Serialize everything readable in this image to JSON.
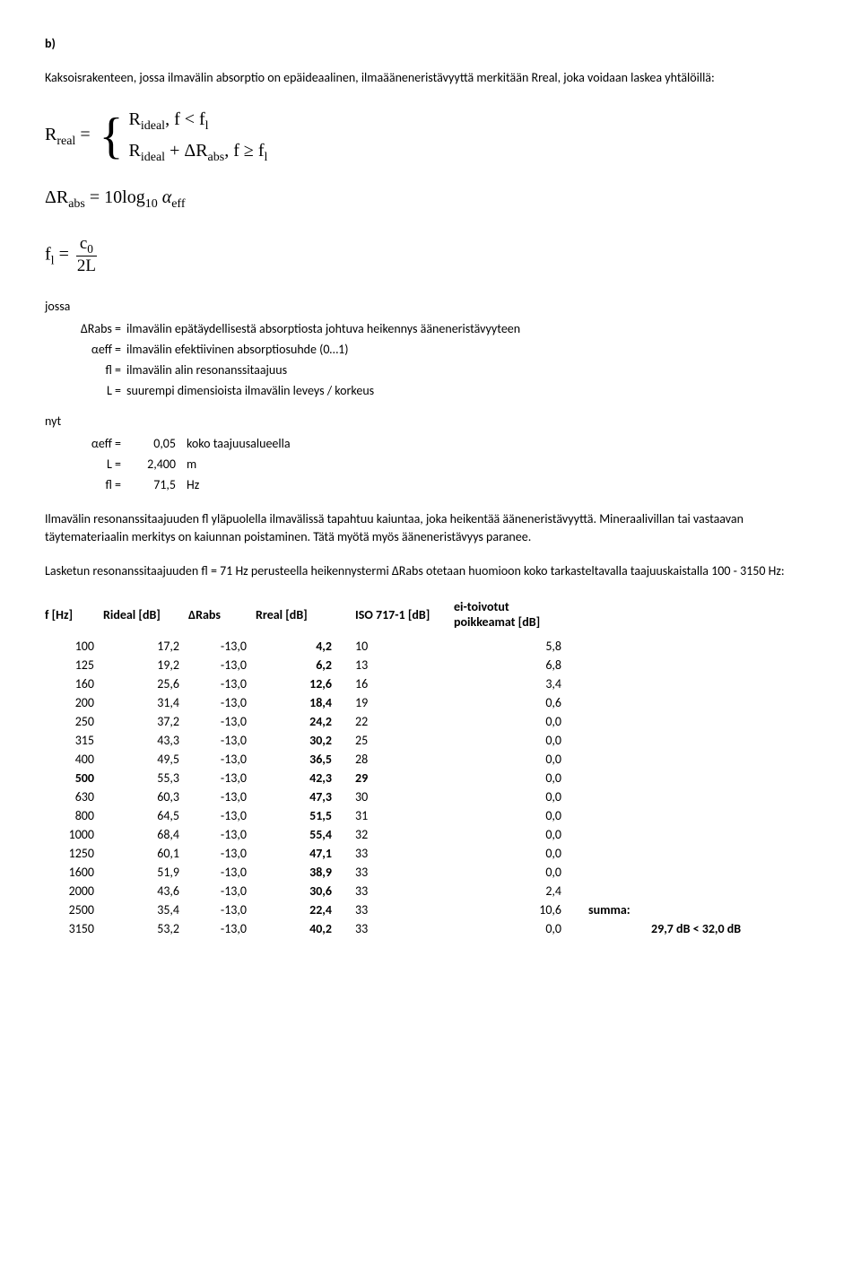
{
  "section_label": "b)",
  "intro": "Kaksoisrakenteen, jossa ilmavälin absorptio on epäideaalinen, ilmaääneneristävyyttä merkitään Rreal, joka voidaan laskea yhtälöillä:",
  "eq1": {
    "lhs": "R",
    "lhs_sub": "real",
    "case1_a": "R",
    "case1_a_sub": "ideal",
    "case1_cond": ", f < f",
    "case1_cond_l": "l",
    "case2_a": "R",
    "case2_a_sub": "ideal",
    "case2_plus": " + ΔR",
    "case2_plus_sub": "abs",
    "case2_cond": ", f ≥ f",
    "case2_cond_l": "l"
  },
  "eq2": {
    "lhs": "ΔR",
    "lhs_sub": "abs",
    "mid": " = 10log",
    "mid_sub": "10",
    "rhs": " α",
    "rhs_sub": "eff"
  },
  "eq3": {
    "lhs": "f",
    "lhs_sub": "l",
    "eq": " = ",
    "num": "c",
    "num_sub": "0",
    "den": "2L"
  },
  "defs_title": "jossa",
  "defs": [
    {
      "sym": "ΔRabs =",
      "desc": "ilmavälin epätäydellisestä absorptiosta johtuva heikennys ääneneristävyyteen"
    },
    {
      "sym": "αeff =",
      "desc": "ilmavälin efektiivinen absorptiosuhde (0…1)"
    },
    {
      "sym": "fl =",
      "desc": "ilmavälin alin resonanssitaajuus"
    },
    {
      "sym": "L =",
      "desc": "suurempi dimensioista ilmavälin leveys / korkeus"
    }
  ],
  "nyt_title": "nyt",
  "nyt": [
    {
      "sym": "αeff =",
      "val": "0,05",
      "unit": "koko taajuusalueella"
    },
    {
      "sym": "L =",
      "val": "2,400",
      "unit": "m"
    },
    {
      "sym": "fl =",
      "val": "71,5",
      "unit": "Hz"
    }
  ],
  "para1": "Ilmavälin resonanssitaajuuden fl yläpuolella ilmavälissä tapahtuu kaiuntaa, joka heikentää ääneneristävyyttä. Mineraalivillan tai vastaavan täytemateriaalin merkitys on kaiunnan poistaminen. Tätä myötä myös ääneneristävyys paranee.",
  "para2": "Lasketun resonanssitaajuuden fl = 71 Hz perusteella heikennystermi ΔRabs otetaan huomioon koko tarkasteltavalla taajuuskaistalla 100 - 3150 Hz:",
  "table": {
    "headers": [
      "f [Hz]",
      "Rideal [dB]",
      "ΔRabs",
      "Rreal [dB]",
      "ISO 717-1 [dB]",
      "ei-toivotut poikkeamat [dB]"
    ],
    "rows": [
      {
        "f": "100",
        "rideal": "17,2",
        "drabs": "-13,0",
        "rreal": "4,2",
        "iso": "10",
        "dev": "5,8",
        "fbold": false,
        "isobold": false
      },
      {
        "f": "125",
        "rideal": "19,2",
        "drabs": "-13,0",
        "rreal": "6,2",
        "iso": "13",
        "dev": "6,8",
        "fbold": false,
        "isobold": false
      },
      {
        "f": "160",
        "rideal": "25,6",
        "drabs": "-13,0",
        "rreal": "12,6",
        "iso": "16",
        "dev": "3,4",
        "fbold": false,
        "isobold": false
      },
      {
        "f": "200",
        "rideal": "31,4",
        "drabs": "-13,0",
        "rreal": "18,4",
        "iso": "19",
        "dev": "0,6",
        "fbold": false,
        "isobold": false
      },
      {
        "f": "250",
        "rideal": "37,2",
        "drabs": "-13,0",
        "rreal": "24,2",
        "iso": "22",
        "dev": "0,0",
        "fbold": false,
        "isobold": false
      },
      {
        "f": "315",
        "rideal": "43,3",
        "drabs": "-13,0",
        "rreal": "30,2",
        "iso": "25",
        "dev": "0,0",
        "fbold": false,
        "isobold": false
      },
      {
        "f": "400",
        "rideal": "49,5",
        "drabs": "-13,0",
        "rreal": "36,5",
        "iso": "28",
        "dev": "0,0",
        "fbold": false,
        "isobold": false
      },
      {
        "f": "500",
        "rideal": "55,3",
        "drabs": "-13,0",
        "rreal": "42,3",
        "iso": "29",
        "dev": "0,0",
        "fbold": true,
        "isobold": true
      },
      {
        "f": "630",
        "rideal": "60,3",
        "drabs": "-13,0",
        "rreal": "47,3",
        "iso": "30",
        "dev": "0,0",
        "fbold": false,
        "isobold": false
      },
      {
        "f": "800",
        "rideal": "64,5",
        "drabs": "-13,0",
        "rreal": "51,5",
        "iso": "31",
        "dev": "0,0",
        "fbold": false,
        "isobold": false
      },
      {
        "f": "1000",
        "rideal": "68,4",
        "drabs": "-13,0",
        "rreal": "55,4",
        "iso": "32",
        "dev": "0,0",
        "fbold": false,
        "isobold": false
      },
      {
        "f": "1250",
        "rideal": "60,1",
        "drabs": "-13,0",
        "rreal": "47,1",
        "iso": "33",
        "dev": "0,0",
        "fbold": false,
        "isobold": false
      },
      {
        "f": "1600",
        "rideal": "51,9",
        "drabs": "-13,0",
        "rreal": "38,9",
        "iso": "33",
        "dev": "0,0",
        "fbold": false,
        "isobold": false
      },
      {
        "f": "2000",
        "rideal": "43,6",
        "drabs": "-13,0",
        "rreal": "30,6",
        "iso": "33",
        "dev": "2,4",
        "fbold": false,
        "isobold": false
      },
      {
        "f": "2500",
        "rideal": "35,4",
        "drabs": "-13,0",
        "rreal": "22,4",
        "iso": "33",
        "dev": "10,6",
        "fbold": false,
        "isobold": false
      },
      {
        "f": "3150",
        "rideal": "53,2",
        "drabs": "-13,0",
        "rreal": "40,2",
        "iso": "33",
        "dev": "0,0",
        "fbold": false,
        "isobold": false
      }
    ],
    "summa_label": "summa:",
    "final_result": "29,7 dB < 32,0 dB"
  }
}
